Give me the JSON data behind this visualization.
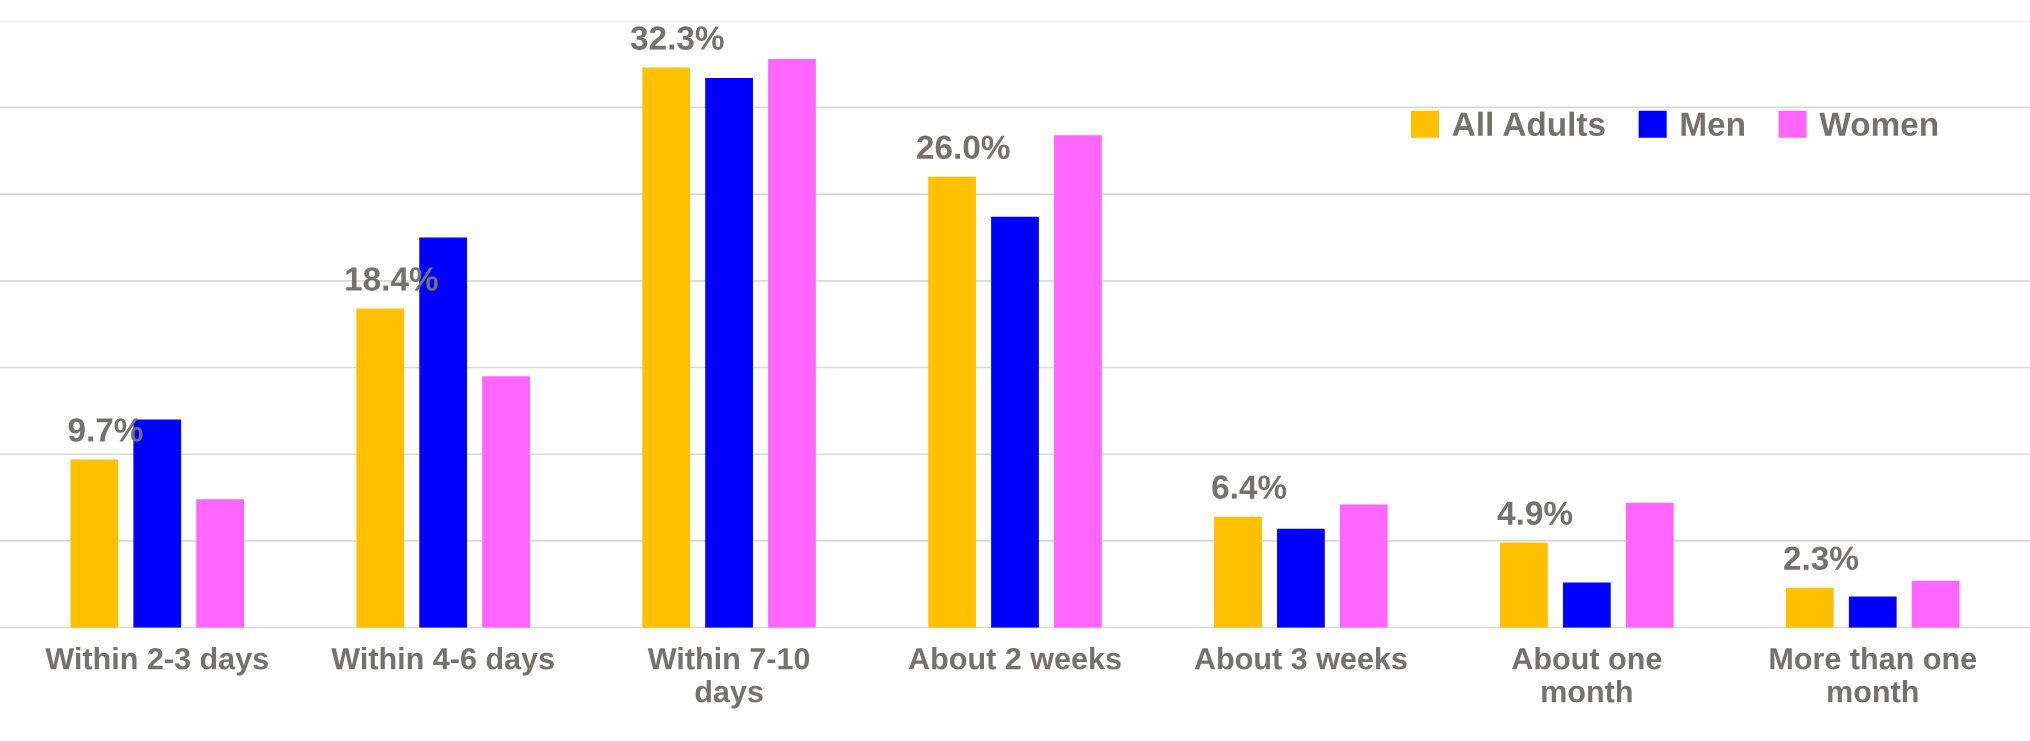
{
  "chart_data": {
    "type": "bar",
    "categories": [
      "Within 2-3 days",
      "Within 4-6 days",
      "Within 7-10\ndays",
      "About 2 weeks",
      "About 3 weeks",
      "About one\nmonth",
      "More than one\nmonth"
    ],
    "series": [
      {
        "name": "All Adults",
        "color": "#ffc000",
        "values": [
          9.7,
          18.4,
          32.3,
          26.0,
          6.4,
          4.9,
          2.3
        ],
        "value_labels": [
          "9.7%",
          "18.4%",
          "32.3%",
          "26.0%",
          "6.4%",
          "4.9%",
          "2.3%"
        ]
      },
      {
        "name": "Men",
        "color": "#0000ff",
        "values": [
          12.0,
          22.5,
          31.7,
          23.7,
          5.7,
          2.6,
          1.8
        ]
      },
      {
        "name": "Women",
        "color": "#ff66ff",
        "values": [
          7.4,
          14.5,
          32.8,
          28.4,
          7.1,
          7.2,
          2.7
        ]
      }
    ],
    "ylim": [
      0,
      35
    ],
    "yticks": [
      {
        "value": 0,
        "label": null
      },
      {
        "value": 5,
        "label": null
      },
      {
        "value": 10,
        "label": null
      },
      {
        "value": 15,
        "label": null
      },
      {
        "value": 20,
        "label": null
      },
      {
        "value": 25,
        "label": null
      },
      {
        "value": 30,
        "label": null
      },
      {
        "value": 35,
        "label": null
      }
    ],
    "grid": "y",
    "tick_labels": "x",
    "legend": "top right"
  }
}
